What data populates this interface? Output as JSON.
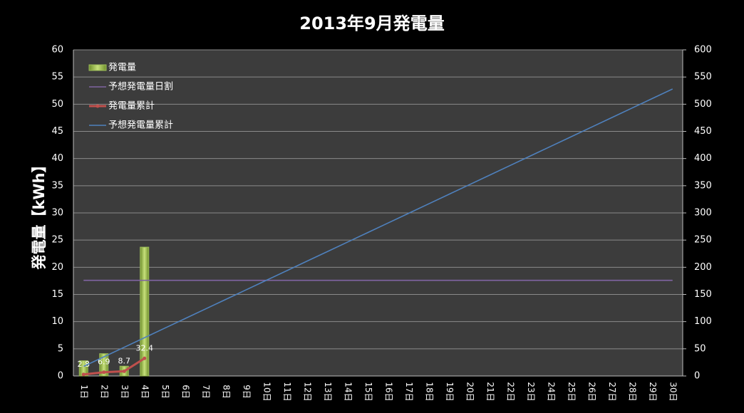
{
  "chart_data": {
    "type": "bar",
    "title": "2013年9月発電量",
    "y_label": "発電量【kWh】",
    "categories": [
      "1日",
      "2日",
      "3日",
      "4日",
      "5日",
      "6日",
      "7日",
      "8日",
      "9日",
      "10日",
      "11日",
      "12日",
      "13日",
      "14日",
      "15日",
      "16日",
      "17日",
      "18日",
      "19日",
      "20日",
      "21日",
      "22日",
      "23日",
      "24日",
      "25日",
      "26日",
      "27日",
      "28日",
      "29日",
      "30日"
    ],
    "series": [
      {
        "name": "発電量",
        "type": "bar",
        "color": "#9bbb59",
        "axis": "y",
        "values": [
          2.8,
          4.1,
          1.8,
          23.7,
          null,
          null,
          null,
          null,
          null,
          null,
          null,
          null,
          null,
          null,
          null,
          null,
          null,
          null,
          null,
          null,
          null,
          null,
          null,
          null,
          null,
          null,
          null,
          null,
          null,
          null
        ]
      },
      {
        "name": "予想発電量日割",
        "type": "line",
        "color": "#8064a2",
        "axis": "y",
        "values": [
          17.6,
          17.6,
          17.6,
          17.6,
          17.6,
          17.6,
          17.6,
          17.6,
          17.6,
          17.6,
          17.6,
          17.6,
          17.6,
          17.6,
          17.6,
          17.6,
          17.6,
          17.6,
          17.6,
          17.6,
          17.6,
          17.6,
          17.6,
          17.6,
          17.6,
          17.6,
          17.6,
          17.6,
          17.6,
          17.6
        ]
      },
      {
        "name": "発電量累計",
        "type": "line",
        "color": "#c0504d",
        "axis": "y2",
        "markers": true,
        "data_labels": true,
        "values": [
          2.8,
          6.9,
          8.7,
          32.4,
          null,
          null,
          null,
          null,
          null,
          null,
          null,
          null,
          null,
          null,
          null,
          null,
          null,
          null,
          null,
          null,
          null,
          null,
          null,
          null,
          null,
          null,
          null,
          null,
          null,
          null
        ]
      },
      {
        "name": "予想発電量累計",
        "type": "line",
        "color": "#4f81bd",
        "axis": "y2",
        "values": [
          17.6,
          35.2,
          52.8,
          70.4,
          88,
          105.6,
          123.2,
          140.8,
          158.4,
          176,
          193.6,
          211.2,
          228.8,
          246.4,
          264,
          281.6,
          299.2,
          316.8,
          334.4,
          352,
          369.6,
          387.2,
          404.8,
          422.4,
          440,
          457.6,
          475.2,
          492.8,
          510.4,
          528
        ]
      }
    ],
    "ylim": [
      0,
      60
    ],
    "yticks": [
      0,
      5,
      10,
      15,
      20,
      25,
      30,
      35,
      40,
      45,
      50,
      55,
      60
    ],
    "y2lim": [
      0,
      600
    ],
    "y2ticks": [
      0,
      50,
      100,
      150,
      200,
      250,
      300,
      350,
      400,
      450,
      500,
      550,
      600
    ],
    "grid": true,
    "legend": "top-left"
  }
}
